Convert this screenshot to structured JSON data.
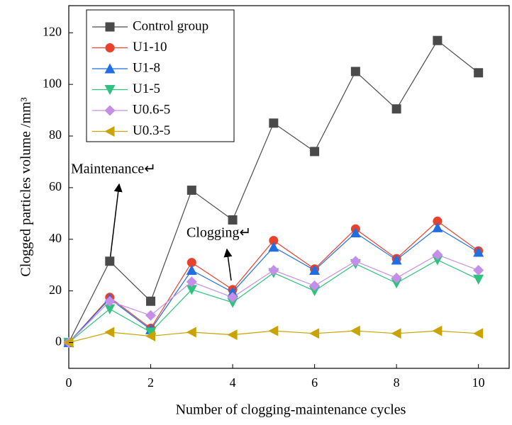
{
  "chart_data": {
    "type": "line",
    "xlabel": "Number of clogging-maintenance cycles",
    "ylabel": "Clogged particles volume /mm³",
    "x": [
      0,
      1,
      2,
      3,
      4,
      5,
      6,
      7,
      8,
      9,
      10
    ],
    "series": [
      {
        "name": "Control group",
        "color": "#4a4a4a",
        "marker": "square",
        "values": [
          0,
          31.5,
          16,
          59,
          47.5,
          85,
          74,
          105,
          90.5,
          117,
          104.5
        ]
      },
      {
        "name": "U1-10",
        "color": "#e8412c",
        "marker": "circle",
        "values": [
          0,
          17.5,
          5.5,
          31,
          20.5,
          39.5,
          28.5,
          44,
          32.5,
          47,
          35.5
        ]
      },
      {
        "name": "U1-8",
        "color": "#1f6fe0",
        "marker": "triangle-up",
        "values": [
          0,
          17,
          5,
          28,
          19.5,
          37,
          28,
          42.5,
          32,
          44.5,
          35
        ]
      },
      {
        "name": "U1-5",
        "color": "#2ec27e",
        "marker": "triangle-down",
        "values": [
          0,
          13,
          4,
          20.5,
          15.5,
          27,
          20,
          30.5,
          23,
          32,
          24.5
        ]
      },
      {
        "name": "U0.6-5",
        "color": "#c58ee8",
        "marker": "diamond",
        "values": [
          0,
          16,
          10.5,
          23.5,
          17.5,
          28,
          22,
          31.5,
          25,
          34,
          28
        ]
      },
      {
        "name": "U0.3-5",
        "color": "#c9a300",
        "marker": "triangle-left",
        "values": [
          0,
          4,
          2.5,
          4,
          3,
          4.5,
          3.5,
          4.5,
          3.5,
          4.5,
          3.5
        ]
      }
    ],
    "xlim": [
      0,
      10.75
    ],
    "xticks": [
      0,
      2,
      4,
      6,
      8,
      10
    ],
    "ylim": [
      -10,
      130.5
    ],
    "yticks": [
      0,
      20,
      40,
      60,
      80,
      100,
      120
    ],
    "legend": "upper-left",
    "annotations": [
      "Maintenance↵",
      "Clogging↵"
    ]
  }
}
